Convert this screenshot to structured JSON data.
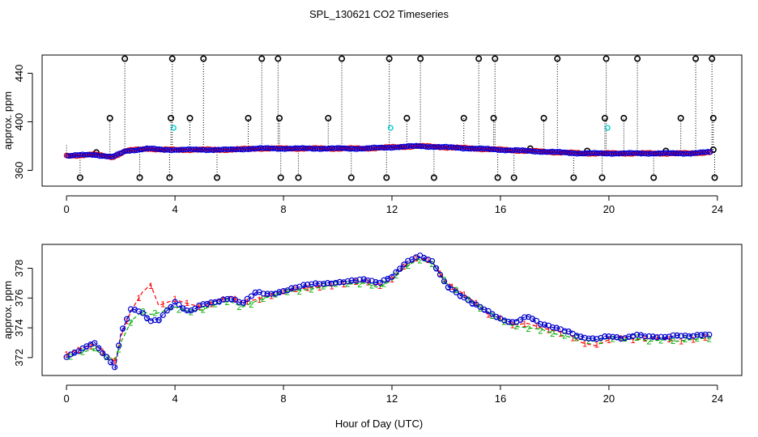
{
  "title": "SPL_130621  CO2 Timeseries",
  "xlabel": "Hour of Day (UTC)",
  "chart_data": [
    {
      "type": "scatter",
      "panel": "top",
      "title": "SPL_130621  CO2 Timeseries",
      "xlabel": "",
      "ylabel": "approx. ppm",
      "xlim": [
        -0.9,
        24.9
      ],
      "ylim": [
        347,
        455
      ],
      "xticks": [
        0,
        4,
        8,
        12,
        16,
        20,
        24
      ],
      "yticks": [
        360,
        400,
        440
      ],
      "baseline": {
        "name": "smoothed series",
        "x": [
          0,
          1,
          1.7,
          2.2,
          3,
          3.5,
          4,
          5,
          6,
          7,
          8,
          9,
          10,
          11,
          12,
          12.5,
          13,
          14,
          15,
          16,
          17,
          18,
          19,
          20,
          21,
          22,
          23,
          23.7
        ],
        "y": [
          372,
          373,
          371,
          376,
          378,
          377,
          377,
          377,
          377,
          378,
          378,
          378,
          378,
          378,
          379,
          379.5,
          380,
          379,
          378,
          377,
          376,
          375,
          374,
          374,
          374,
          374,
          374,
          375
        ]
      },
      "spikes_high": [
        2.15,
        3.9,
        5.05,
        7.2,
        7.8,
        10.15,
        11.9,
        13.05,
        15.2,
        15.8,
        18.1,
        19.9,
        21.05,
        23.2,
        23.8
      ],
      "spikes_mid": [
        1.6,
        3.85,
        4.55,
        6.7,
        7.85,
        9.65,
        12.55,
        14.65,
        15.75,
        17.6,
        19.85,
        20.55,
        22.65,
        23.85
      ],
      "spikes_low": [
        0.5,
        2.7,
        3.8,
        5.55,
        7.9,
        8.55,
        10.5,
        11.8,
        13.55,
        15.9,
        16.5,
        18.7,
        19.75,
        21.65,
        23.9
      ],
      "spikes_small": [
        1.1,
        17.1,
        19.2,
        22.1,
        23.85
      ],
      "cyan_points": [
        {
          "x": 3.95,
          "y": 395
        },
        {
          "x": 11.95,
          "y": 395
        },
        {
          "x": 19.95,
          "y": 395
        }
      ],
      "high_value": 452,
      "mid_value": 403,
      "low_value": 354
    },
    {
      "type": "line",
      "panel": "bottom",
      "xlabel": "Hour of Day (UTC)",
      "ylabel": "approx. ppm",
      "xlim": [
        -0.9,
        24.9
      ],
      "ylim": [
        370.8,
        379.6
      ],
      "xticks": [
        0,
        4,
        8,
        12,
        16,
        20,
        24
      ],
      "yticks": [
        372,
        374,
        376,
        378
      ],
      "series": [
        {
          "name": "1",
          "color": "#ff0000",
          "x": [
            0,
            0.5,
            1,
            1.5,
            1.8,
            2.0,
            2.4,
            2.8,
            3.1,
            3.4,
            4,
            4.5,
            5,
            5.5,
            6,
            6.5,
            7,
            7.5,
            8,
            9,
            10,
            11,
            11.5,
            12,
            12.5,
            13,
            13.5,
            14,
            15,
            15.6,
            16,
            16.5,
            17,
            17.5,
            18,
            18.5,
            19,
            19.5,
            20,
            20.5,
            21,
            21.5,
            22,
            22.5,
            23,
            23.5,
            23.7
          ],
          "y": [
            372.2,
            372.6,
            372.9,
            372.2,
            371.7,
            373.4,
            375.2,
            376.4,
            376.9,
            375.5,
            375.9,
            375.6,
            375.4,
            375.8,
            376.1,
            375.7,
            375.9,
            376.2,
            376.5,
            376.7,
            376.9,
            377.1,
            376.8,
            377.3,
            378.2,
            378.7,
            378.4,
            377.1,
            375.8,
            374.8,
            374.7,
            374.2,
            374.3,
            374.0,
            373.8,
            373.6,
            373.0,
            372.8,
            373.2,
            373.4,
            373.2,
            373.3,
            373.3,
            373.1,
            373.2,
            373.3,
            373.3
          ]
        },
        {
          "name": "2",
          "color": "#00aa00",
          "x": [
            0,
            0.5,
            1,
            1.5,
            1.8,
            2.0,
            2.4,
            2.8,
            3.1,
            3.4,
            4,
            4.5,
            5,
            5.5,
            6,
            6.5,
            7,
            7.5,
            8,
            9,
            10,
            11,
            11.5,
            12,
            12.5,
            13,
            13.5,
            14,
            15,
            15.6,
            16,
            16.5,
            17,
            17.5,
            18,
            18.5,
            19,
            19.5,
            20,
            20.5,
            21,
            21.5,
            22,
            22.5,
            23,
            23.5,
            23.7
          ],
          "y": [
            372.0,
            372.3,
            372.6,
            372.0,
            371.9,
            373.0,
            374.5,
            375.1,
            374.9,
            375.0,
            375.4,
            375.1,
            375.2,
            375.6,
            375.8,
            375.4,
            375.8,
            376.1,
            376.4,
            376.6,
            376.9,
            377.0,
            376.7,
            377.2,
            378.1,
            378.6,
            378.3,
            377.0,
            375.7,
            375.0,
            374.5,
            374.1,
            374.0,
            373.9,
            373.6,
            373.4,
            373.2,
            373.1,
            373.3,
            373.2,
            373.3,
            373.1,
            373.2,
            373.1,
            373.2,
            373.3,
            373.3
          ]
        },
        {
          "name": "3",
          "color": "#0000cc",
          "x": [
            0,
            0.5,
            1,
            1.5,
            1.8,
            2.0,
            2.4,
            2.8,
            3.1,
            3.4,
            4,
            4.5,
            5,
            5.5,
            6,
            6.5,
            7,
            7.5,
            8,
            9,
            10,
            11,
            11.5,
            12,
            12.5,
            13,
            13.5,
            14,
            15,
            15.6,
            16,
            16.5,
            17,
            17.5,
            18,
            18.5,
            19,
            19.5,
            20,
            20.5,
            21,
            21.5,
            22,
            22.5,
            23,
            23.5,
            23.7
          ],
          "y": [
            372.0,
            372.5,
            373.1,
            372.0,
            371.3,
            373.6,
            375.3,
            375.0,
            374.5,
            374.6,
            375.7,
            375.0,
            375.6,
            375.8,
            376.0,
            375.6,
            376.4,
            376.3,
            376.5,
            376.9,
            377.1,
            377.2,
            377.0,
            377.5,
            378.4,
            378.8,
            378.4,
            376.9,
            375.6,
            375.0,
            374.6,
            374.4,
            374.8,
            374.2,
            374.0,
            373.8,
            373.4,
            373.2,
            373.4,
            373.3,
            373.6,
            373.4,
            373.3,
            373.5,
            373.5,
            373.6,
            373.5
          ]
        }
      ]
    }
  ]
}
